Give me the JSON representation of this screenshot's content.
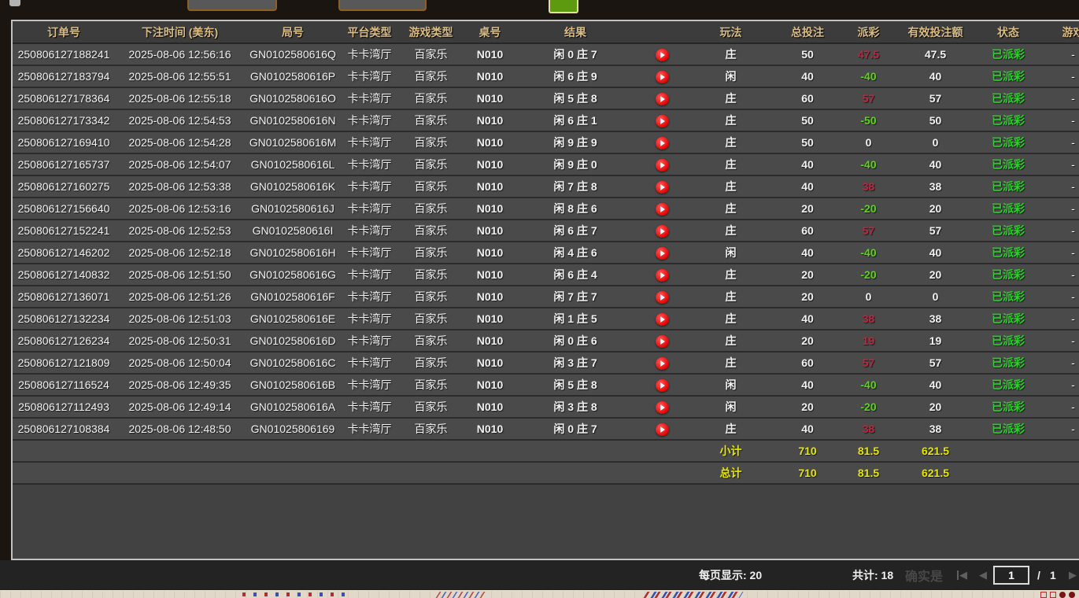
{
  "table": {
    "columns": [
      {
        "key": "order",
        "label": "订单号"
      },
      {
        "key": "time",
        "label": "下注时间 (美东)"
      },
      {
        "key": "round",
        "label": "局号"
      },
      {
        "key": "platform",
        "label": "平台类型"
      },
      {
        "key": "game_type",
        "label": "游戏类型"
      },
      {
        "key": "table_no",
        "label": "桌号"
      },
      {
        "key": "result",
        "label": "结果"
      },
      {
        "key": "replay",
        "label": ""
      },
      {
        "key": "play",
        "label": "玩法"
      },
      {
        "key": "total_bet",
        "label": "总投注"
      },
      {
        "key": "payout",
        "label": "派彩"
      },
      {
        "key": "valid_bet",
        "label": "有效投注额"
      },
      {
        "key": "status",
        "label": "状态"
      },
      {
        "key": "game",
        "label": "游戏"
      }
    ],
    "rows": [
      {
        "order": "250806127188241",
        "time": "2025-08-06 12:56:16",
        "round": "GN0102580616Q",
        "platform": "卡卡湾厅",
        "game_type": "百家乐",
        "table_no": "N010",
        "result": "闲 0 庄 7",
        "play": "庄",
        "total_bet": "50",
        "payout": "47.5",
        "valid_bet": "47.5",
        "status": "已派彩",
        "game": "-"
      },
      {
        "order": "250806127183794",
        "time": "2025-08-06 12:55:51",
        "round": "GN0102580616P",
        "platform": "卡卡湾厅",
        "game_type": "百家乐",
        "table_no": "N010",
        "result": "闲 6 庄 9",
        "play": "闲",
        "total_bet": "40",
        "payout": "-40",
        "valid_bet": "40",
        "status": "已派彩",
        "game": "-"
      },
      {
        "order": "250806127178364",
        "time": "2025-08-06 12:55:18",
        "round": "GN0102580616O",
        "platform": "卡卡湾厅",
        "game_type": "百家乐",
        "table_no": "N010",
        "result": "闲 5 庄 8",
        "play": "庄",
        "total_bet": "60",
        "payout": "57",
        "valid_bet": "57",
        "status": "已派彩",
        "game": "-"
      },
      {
        "order": "250806127173342",
        "time": "2025-08-06 12:54:53",
        "round": "GN0102580616N",
        "platform": "卡卡湾厅",
        "game_type": "百家乐",
        "table_no": "N010",
        "result": "闲 6 庄 1",
        "play": "庄",
        "total_bet": "50",
        "payout": "-50",
        "valid_bet": "50",
        "status": "已派彩",
        "game": "-"
      },
      {
        "order": "250806127169410",
        "time": "2025-08-06 12:54:28",
        "round": "GN0102580616M",
        "platform": "卡卡湾厅",
        "game_type": "百家乐",
        "table_no": "N010",
        "result": "闲 9 庄 9",
        "play": "庄",
        "total_bet": "50",
        "payout": "0",
        "valid_bet": "0",
        "status": "已派彩",
        "game": "-"
      },
      {
        "order": "250806127165737",
        "time": "2025-08-06 12:54:07",
        "round": "GN0102580616L",
        "platform": "卡卡湾厅",
        "game_type": "百家乐",
        "table_no": "N010",
        "result": "闲 9 庄 0",
        "play": "庄",
        "total_bet": "40",
        "payout": "-40",
        "valid_bet": "40",
        "status": "已派彩",
        "game": "-"
      },
      {
        "order": "250806127160275",
        "time": "2025-08-06 12:53:38",
        "round": "GN0102580616K",
        "platform": "卡卡湾厅",
        "game_type": "百家乐",
        "table_no": "N010",
        "result": "闲 7 庄 8",
        "play": "庄",
        "total_bet": "40",
        "payout": "38",
        "valid_bet": "38",
        "status": "已派彩",
        "game": "-"
      },
      {
        "order": "250806127156640",
        "time": "2025-08-06 12:53:16",
        "round": "GN0102580616J",
        "platform": "卡卡湾厅",
        "game_type": "百家乐",
        "table_no": "N010",
        "result": "闲 8 庄 6",
        "play": "庄",
        "total_bet": "20",
        "payout": "-20",
        "valid_bet": "20",
        "status": "已派彩",
        "game": "-"
      },
      {
        "order": "250806127152241",
        "time": "2025-08-06 12:52:53",
        "round": "GN0102580616I",
        "platform": "卡卡湾厅",
        "game_type": "百家乐",
        "table_no": "N010",
        "result": "闲 6 庄 7",
        "play": "庄",
        "total_bet": "60",
        "payout": "57",
        "valid_bet": "57",
        "status": "已派彩",
        "game": "-"
      },
      {
        "order": "250806127146202",
        "time": "2025-08-06 12:52:18",
        "round": "GN0102580616H",
        "platform": "卡卡湾厅",
        "game_type": "百家乐",
        "table_no": "N010",
        "result": "闲 4 庄 6",
        "play": "闲",
        "total_bet": "40",
        "payout": "-40",
        "valid_bet": "40",
        "status": "已派彩",
        "game": "-"
      },
      {
        "order": "250806127140832",
        "time": "2025-08-06 12:51:50",
        "round": "GN0102580616G",
        "platform": "卡卡湾厅",
        "game_type": "百家乐",
        "table_no": "N010",
        "result": "闲 6 庄 4",
        "play": "庄",
        "total_bet": "20",
        "payout": "-20",
        "valid_bet": "20",
        "status": "已派彩",
        "game": "-"
      },
      {
        "order": "250806127136071",
        "time": "2025-08-06 12:51:26",
        "round": "GN0102580616F",
        "platform": "卡卡湾厅",
        "game_type": "百家乐",
        "table_no": "N010",
        "result": "闲 7 庄 7",
        "play": "庄",
        "total_bet": "20",
        "payout": "0",
        "valid_bet": "0",
        "status": "已派彩",
        "game": "-"
      },
      {
        "order": "250806127132234",
        "time": "2025-08-06 12:51:03",
        "round": "GN0102580616E",
        "platform": "卡卡湾厅",
        "game_type": "百家乐",
        "table_no": "N010",
        "result": "闲 1 庄 5",
        "play": "庄",
        "total_bet": "40",
        "payout": "38",
        "valid_bet": "38",
        "status": "已派彩",
        "game": "-"
      },
      {
        "order": "250806127126234",
        "time": "2025-08-06 12:50:31",
        "round": "GN0102580616D",
        "platform": "卡卡湾厅",
        "game_type": "百家乐",
        "table_no": "N010",
        "result": "闲 0 庄 6",
        "play": "庄",
        "total_bet": "20",
        "payout": "19",
        "valid_bet": "19",
        "status": "已派彩",
        "game": "-"
      },
      {
        "order": "250806127121809",
        "time": "2025-08-06 12:50:04",
        "round": "GN0102580616C",
        "platform": "卡卡湾厅",
        "game_type": "百家乐",
        "table_no": "N010",
        "result": "闲 3 庄 7",
        "play": "庄",
        "total_bet": "60",
        "payout": "57",
        "valid_bet": "57",
        "status": "已派彩",
        "game": "-"
      },
      {
        "order": "250806127116524",
        "time": "2025-08-06 12:49:35",
        "round": "GN0102580616B",
        "platform": "卡卡湾厅",
        "game_type": "百家乐",
        "table_no": "N010",
        "result": "闲 5 庄 8",
        "play": "闲",
        "total_bet": "40",
        "payout": "-40",
        "valid_bet": "40",
        "status": "已派彩",
        "game": "-"
      },
      {
        "order": "250806127112493",
        "time": "2025-08-06 12:49:14",
        "round": "GN0102580616A",
        "platform": "卡卡湾厅",
        "game_type": "百家乐",
        "table_no": "N010",
        "result": "闲 3 庄 8",
        "play": "闲",
        "total_bet": "20",
        "payout": "-20",
        "valid_bet": "20",
        "status": "已派彩",
        "game": "-"
      },
      {
        "order": "250806127108384",
        "time": "2025-08-06 12:48:50",
        "round": "GN01025806169",
        "platform": "卡卡湾厅",
        "game_type": "百家乐",
        "table_no": "N010",
        "result": "闲 0 庄 7",
        "play": "庄",
        "total_bet": "40",
        "payout": "38",
        "valid_bet": "38",
        "status": "已派彩",
        "game": "-"
      }
    ],
    "summary_rows": [
      {
        "label": "小计",
        "total_bet": "710",
        "payout": "81.5",
        "valid_bet": "621.5"
      },
      {
        "label": "总计",
        "total_bet": "710",
        "payout": "81.5",
        "valid_bet": "621.5"
      }
    ]
  },
  "pagination": {
    "per_page": "每页显示: 20",
    "total": "共计: 18",
    "ghost_text": "确实是",
    "current_page": "1",
    "page_separator": "/",
    "total_pages": "1",
    "icons": {
      "prev_tri": "◀",
      "next_tri": "▶"
    }
  },
  "colors": {
    "header_text": "#d9bd85",
    "row_background": "#4a4a4a",
    "payout_positive": "#bb2740",
    "payout_negative": "#5cd411",
    "status_paid": "#29d129",
    "summary_yellow": "#e6e600",
    "replay_icon_red": "#e20000",
    "green_button": "#5d9a10"
  }
}
